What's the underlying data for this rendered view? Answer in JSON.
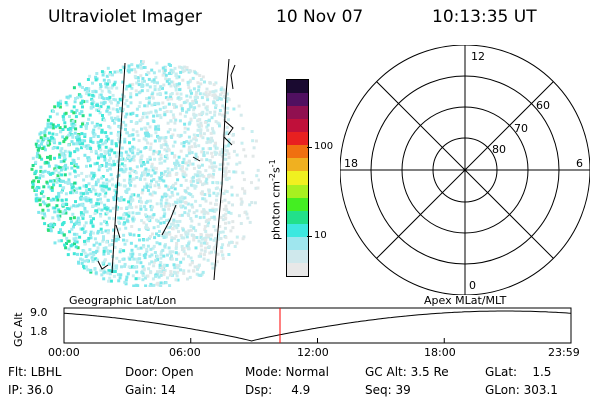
{
  "header": {
    "instrument": "Ultraviolet Imager",
    "date": "10 Nov 07",
    "time": "10:13:35 UT"
  },
  "colorbar": {
    "label_main": "photon cm",
    "label_exp1": "-2",
    "label_mid": "s",
    "label_exp2": "-1",
    "ticks": [
      "100",
      "10"
    ],
    "scale": "log",
    "colors": [
      "#e8e8e8",
      "#cfe8ec",
      "#9fe6ee",
      "#3de8e0",
      "#22e08a",
      "#44ee22",
      "#a8f020",
      "#f0f020",
      "#f0b020",
      "#f07010",
      "#e82020",
      "#c0103a",
      "#901050",
      "#501060",
      "#1a0a30"
    ]
  },
  "polar_grid": {
    "mlt_labels": {
      "top": "12",
      "right": "6",
      "bottom": "0",
      "left": "18"
    },
    "lat_labels": [
      "60",
      "70",
      "80"
    ]
  },
  "timeline": {
    "y_label": "GC Alt",
    "y_ticks": [
      "9.0",
      "1.8"
    ],
    "left_caption": "Geographic Lat/Lon",
    "right_caption": "Apex MLat/MLT",
    "x_ticks": [
      "00:00",
      "06:00",
      "12:00",
      "18:00",
      "23:59"
    ],
    "current_time_fraction": 0.4261,
    "marker_color": "#ff0000"
  },
  "info": {
    "flt": "Flt: LBHL",
    "ip": "IP: 36.0",
    "door": "Door: Open",
    "gain": "Gain: 14",
    "mode": "Mode: Normal",
    "dsp": "Dsp:     4.9",
    "gc_alt": "GC Alt: 3.5 Re",
    "seq": "Seq: 39",
    "glat": "GLat:    1.5",
    "glon": "GLon: 303.1"
  }
}
